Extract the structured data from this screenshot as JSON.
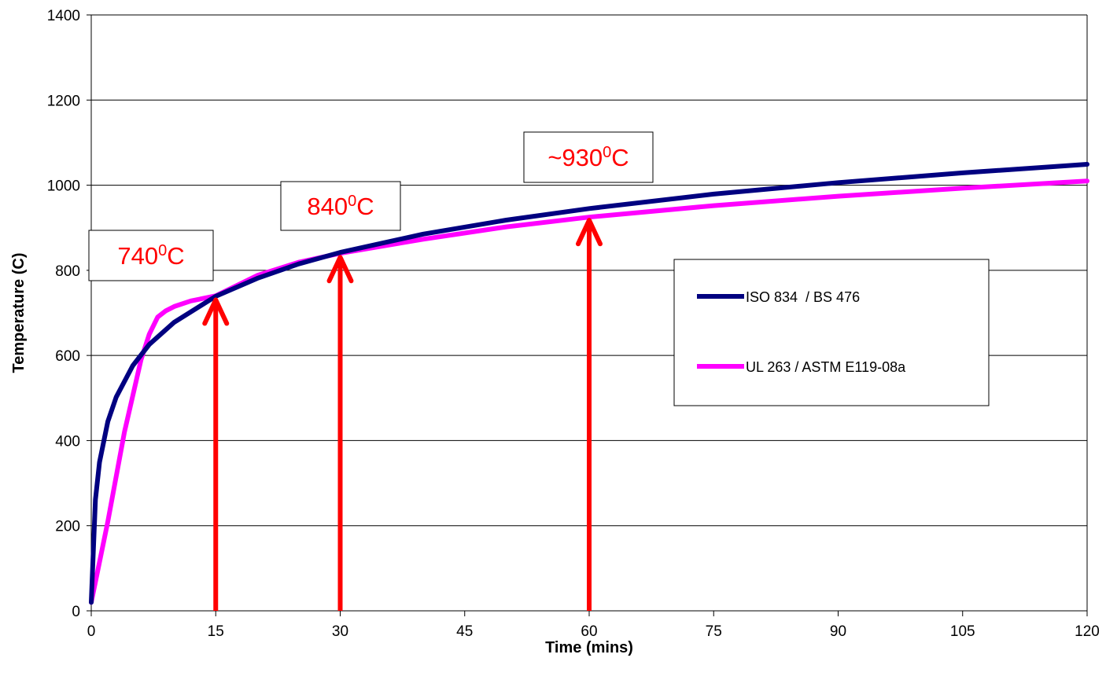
{
  "chart_data": {
    "type": "line",
    "title": "",
    "xlabel": "Time (mins)",
    "ylabel": "Temperature (C)",
    "xlim": [
      0,
      120
    ],
    "ylim": [
      0,
      1400
    ],
    "xticks": [
      "0",
      "15",
      "30",
      "45",
      "60",
      "75",
      "90",
      "105",
      "120"
    ],
    "yticks": [
      "0",
      "200",
      "400",
      "600",
      "800",
      "1000",
      "1200",
      "1400"
    ],
    "grid": "horizontal",
    "legend_position": "right-middle",
    "series": [
      {
        "name": "ISO 834  / BS 476",
        "color": "#000080",
        "x": [
          0,
          0.5,
          1,
          2,
          3,
          5,
          7,
          10,
          15,
          20,
          25,
          30,
          40,
          50,
          60,
          75,
          90,
          105,
          120
        ],
        "y": [
          20,
          261,
          349,
          445,
          502,
          576,
          626,
          678,
          739,
          781,
          815,
          842,
          885,
          918,
          945,
          979,
          1006,
          1029,
          1049
        ]
      },
      {
        "name": "UL 263 / ASTM E119-08a",
        "color": "#ff00ff",
        "x": [
          0,
          2,
          4,
          6,
          7,
          8,
          9,
          10,
          12,
          15,
          20,
          25,
          30,
          40,
          50,
          60,
          75,
          90,
          105,
          120
        ],
        "y": [
          20,
          210,
          420,
          590,
          650,
          690,
          705,
          715,
          728,
          740,
          788,
          819,
          840,
          873,
          902,
          925,
          952,
          974,
          993,
          1010
        ]
      }
    ],
    "annotations": [
      {
        "label_base": "740",
        "label_sup": "0",
        "label_unit": "C",
        "x": 15,
        "arrow_to": 738
      },
      {
        "label_base": "840",
        "label_sup": "0",
        "label_unit": "C",
        "x": 30,
        "arrow_to": 838
      },
      {
        "label_base": "~930",
        "label_sup": "0",
        "label_unit": "C",
        "x": 60,
        "arrow_to": 925
      }
    ]
  }
}
